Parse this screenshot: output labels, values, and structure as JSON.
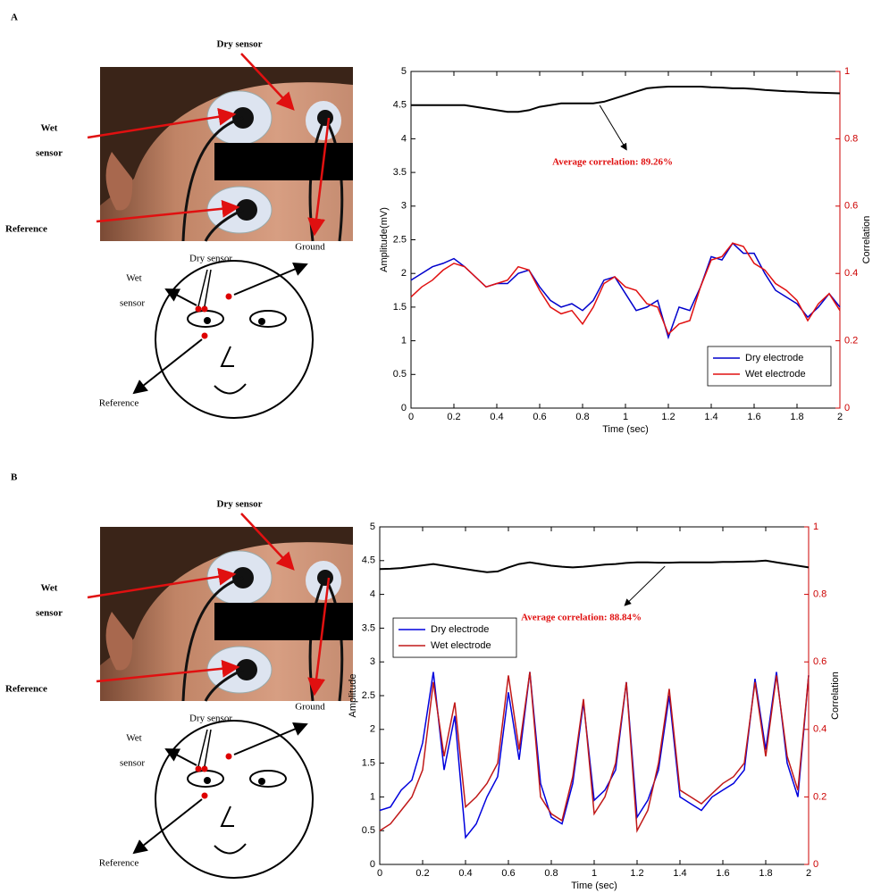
{
  "panels": [
    {
      "letter": "A",
      "photo_labels": {
        "dry": "Dry sensor",
        "wet": [
          "Wet",
          "sensor"
        ],
        "reference": "Reference",
        "ground": "Ground"
      },
      "diagram_labels": {
        "dry": "Dry sensor",
        "wet": [
          "Wet",
          "sensor"
        ],
        "reference": "Reference"
      }
    },
    {
      "letter": "B",
      "photo_labels": {
        "dry": "Dry sensor",
        "wet": [
          "Wet",
          "sensor"
        ],
        "reference": "Reference",
        "ground": "Ground"
      },
      "diagram_labels": {
        "dry": "Dry sensor",
        "wet": [
          "Wet",
          "sensor"
        ],
        "reference": "Reference"
      }
    }
  ],
  "chart_data": [
    {
      "type": "line",
      "x_label": "Time (sec)",
      "y_label": "Amplitude(mV)",
      "y2_label": "Correlation",
      "annotation": "Average correlation: 89.26%",
      "legend": "lower right",
      "x": [
        0,
        0.05,
        0.1,
        0.15,
        0.2,
        0.25,
        0.3,
        0.35,
        0.4,
        0.45,
        0.5,
        0.55,
        0.6,
        0.65,
        0.7,
        0.75,
        0.8,
        0.85,
        0.9,
        0.95,
        1,
        1.05,
        1.1,
        1.15,
        1.2,
        1.25,
        1.3,
        1.35,
        1.4,
        1.45,
        1.5,
        1.55,
        1.6,
        1.65,
        1.7,
        1.75,
        1.8,
        1.85,
        1.9,
        1.95,
        2
      ],
      "xlim": [
        0,
        2
      ],
      "xticks": [
        0,
        0.2,
        0.4,
        0.6,
        0.8,
        1,
        1.2,
        1.4,
        1.6,
        1.8,
        2
      ],
      "ylim": [
        0,
        5
      ],
      "yticks": [
        0,
        0.5,
        1,
        1.5,
        2,
        2.5,
        3,
        3.5,
        4,
        4.5,
        5
      ],
      "y2lim": [
        0,
        1
      ],
      "y2ticks": [
        0,
        0.2,
        0.4,
        0.6,
        0.8,
        1
      ],
      "series": [
        {
          "name": "Dry electrode",
          "color": "#0000cc",
          "values": [
            1.9,
            2.0,
            2.1,
            2.15,
            2.22,
            2.1,
            1.95,
            1.8,
            1.85,
            1.85,
            2.0,
            2.05,
            1.8,
            1.6,
            1.5,
            1.55,
            1.45,
            1.6,
            1.9,
            1.95,
            1.7,
            1.45,
            1.5,
            1.6,
            1.05,
            1.5,
            1.45,
            1.8,
            2.25,
            2.2,
            2.45,
            2.3,
            2.3,
            2.0,
            1.75,
            1.65,
            1.55,
            1.35,
            1.5,
            1.7,
            1.5
          ]
        },
        {
          "name": "Wet electrode",
          "color": "#e01010",
          "values": [
            1.65,
            1.8,
            1.9,
            2.05,
            2.15,
            2.1,
            1.95,
            1.8,
            1.85,
            1.9,
            2.1,
            2.05,
            1.75,
            1.5,
            1.4,
            1.45,
            1.25,
            1.5,
            1.85,
            1.95,
            1.8,
            1.75,
            1.55,
            1.5,
            1.1,
            1.25,
            1.3,
            1.8,
            2.2,
            2.25,
            2.45,
            2.4,
            2.15,
            2.05,
            1.85,
            1.75,
            1.6,
            1.3,
            1.55,
            1.7,
            1.45
          ]
        },
        {
          "color": "#000000",
          "axis": "y2",
          "values": [
            0.9,
            0.9,
            0.9,
            0.9,
            0.9,
            0.9,
            0.895,
            0.89,
            0.885,
            0.88,
            0.88,
            0.885,
            0.895,
            0.9,
            0.905,
            0.905,
            0.905,
            0.905,
            0.91,
            0.92,
            0.93,
            0.94,
            0.95,
            0.953,
            0.955,
            0.955,
            0.955,
            0.955,
            0.953,
            0.952,
            0.95,
            0.95,
            0.948,
            0.945,
            0.943,
            0.941,
            0.94,
            0.938,
            0.937,
            0.936,
            0.935
          ]
        }
      ]
    },
    {
      "type": "line",
      "x_label": "Time (sec)",
      "y_label": "Amplitude",
      "y2_label": "Correlation",
      "annotation": "Average correlation: 88.84%",
      "legend": "upper left",
      "x": [
        0,
        0.05,
        0.1,
        0.15,
        0.2,
        0.25,
        0.3,
        0.35,
        0.4,
        0.45,
        0.5,
        0.55,
        0.6,
        0.65,
        0.7,
        0.75,
        0.8,
        0.85,
        0.9,
        0.95,
        1,
        1.05,
        1.1,
        1.15,
        1.2,
        1.25,
        1.3,
        1.35,
        1.4,
        1.45,
        1.5,
        1.55,
        1.6,
        1.65,
        1.7,
        1.75,
        1.8,
        1.85,
        1.9,
        1.95,
        2
      ],
      "xlim": [
        0,
        2
      ],
      "xticks": [
        0,
        0.2,
        0.4,
        0.6,
        0.8,
        1,
        1.2,
        1.4,
        1.6,
        1.8,
        2
      ],
      "ylim": [
        0,
        5
      ],
      "yticks": [
        0,
        0.5,
        1,
        1.5,
        2,
        2.5,
        3,
        3.5,
        4,
        4.5,
        5
      ],
      "y2lim": [
        0,
        1
      ],
      "y2ticks": [
        0,
        0.2,
        0.4,
        0.6,
        0.8,
        1
      ],
      "series": [
        {
          "name": "Dry electrode",
          "color": "#0000dd",
          "values": [
            0.8,
            0.85,
            1.1,
            1.25,
            1.8,
            2.85,
            1.4,
            2.2,
            0.4,
            0.6,
            1.0,
            1.3,
            2.55,
            1.55,
            2.85,
            1.2,
            0.7,
            0.6,
            1.2,
            2.4,
            0.95,
            1.1,
            1.4,
            2.7,
            0.7,
            0.95,
            1.4,
            2.5,
            1.0,
            0.9,
            0.8,
            1.0,
            1.1,
            1.2,
            1.4,
            2.75,
            1.7,
            2.85,
            1.5,
            1.0,
            2.8
          ]
        },
        {
          "name": "Wet electrode",
          "color": "#c01818",
          "values": [
            0.5,
            0.6,
            0.8,
            1.0,
            1.4,
            2.7,
            1.6,
            2.4,
            0.85,
            1.0,
            1.2,
            1.5,
            2.8,
            1.7,
            2.85,
            1.0,
            0.75,
            0.65,
            1.3,
            2.45,
            0.75,
            1.0,
            1.5,
            2.7,
            0.5,
            0.8,
            1.5,
            2.6,
            1.1,
            1.0,
            0.9,
            1.05,
            1.2,
            1.3,
            1.5,
            2.7,
            1.6,
            2.8,
            1.6,
            1.1,
            2.8
          ]
        },
        {
          "color": "#000000",
          "axis": "y2",
          "values": [
            0.875,
            0.876,
            0.878,
            0.882,
            0.886,
            0.89,
            0.885,
            0.88,
            0.875,
            0.87,
            0.866,
            0.868,
            0.88,
            0.89,
            0.895,
            0.89,
            0.885,
            0.882,
            0.88,
            0.882,
            0.885,
            0.888,
            0.89,
            0.893,
            0.895,
            0.895,
            0.894,
            0.894,
            0.895,
            0.895,
            0.895,
            0.895,
            0.896,
            0.896,
            0.897,
            0.898,
            0.9,
            0.895,
            0.89,
            0.885,
            0.88
          ]
        }
      ]
    }
  ]
}
